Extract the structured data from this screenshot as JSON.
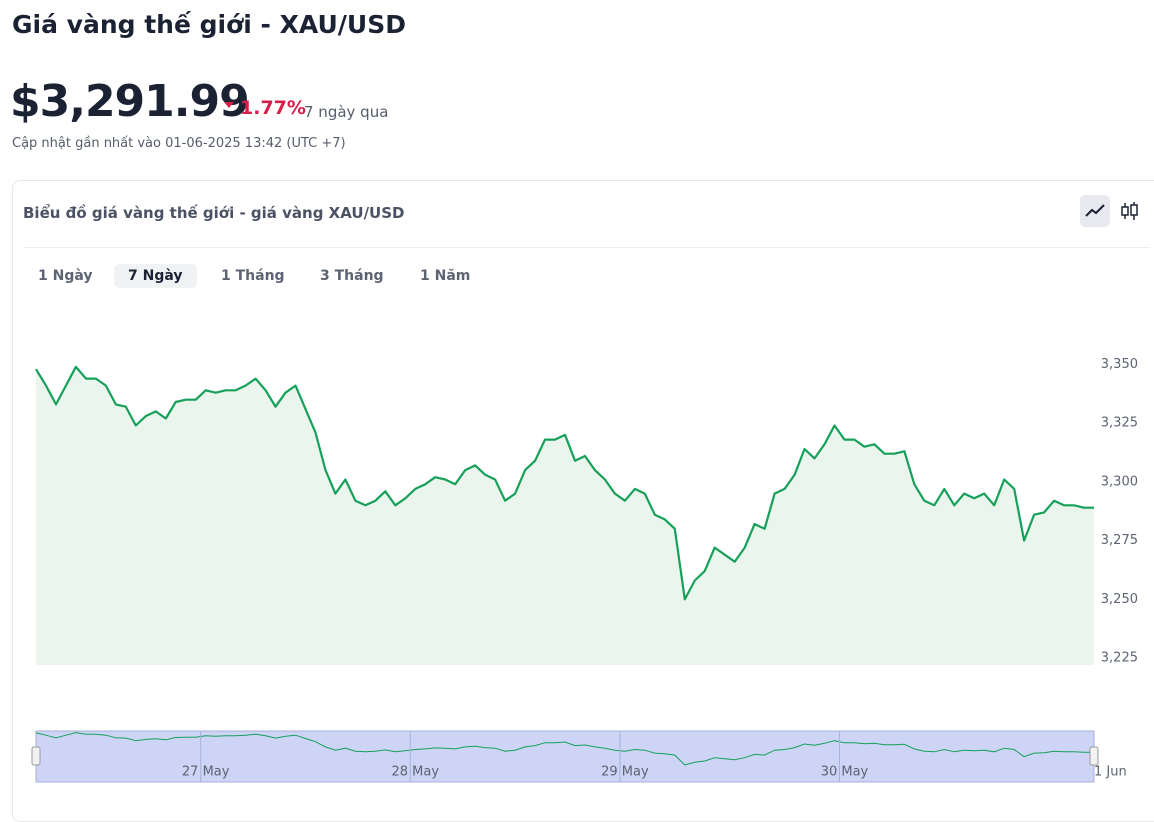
{
  "header": {
    "title": "Giá vàng thế giới - XAU/USD",
    "price": "$3,291.99",
    "change": "1.77%",
    "period": "7 ngày qua",
    "updated": "Cập nhật gần nhất vào 01-06-2025 13:42 (UTC +7)"
  },
  "card": {
    "title": "Biểu đồ giá vàng thế giới - giá vàng XAU/USD",
    "tabs": [
      "1 Ngày",
      "7 Ngày",
      "1 Tháng",
      "3 Tháng",
      "1 Năm"
    ],
    "active_tab": 1
  },
  "chart_data": {
    "type": "area",
    "categories": [
      null,
      null,
      null,
      null,
      null,
      null,
      null,
      null,
      null,
      null,
      null,
      null,
      null,
      null,
      null,
      null,
      null,
      "27 May",
      null,
      null,
      null,
      null,
      null,
      null,
      null,
      null,
      null,
      null,
      null,
      null,
      null,
      null,
      null,
      null,
      null,
      null,
      null,
      null,
      "28 May",
      null,
      null,
      null,
      null,
      null,
      null,
      null,
      null,
      null,
      null,
      null,
      null,
      null,
      null,
      null,
      null,
      null,
      null,
      null,
      null,
      "29 May",
      null,
      null,
      null,
      null,
      null,
      null,
      null,
      null,
      null,
      null,
      null,
      null,
      null,
      null,
      null,
      null,
      null,
      null,
      null,
      null,
      null,
      "30 May",
      null,
      null,
      null,
      null,
      null,
      null,
      null,
      null,
      null,
      null,
      null,
      null,
      null,
      null,
      null,
      null,
      null,
      null,
      null,
      null,
      null,
      null,
      null,
      null,
      "1 Jun"
    ],
    "series": [
      {
        "color": "#16a05a",
        "values": [
          3348,
          3341,
          3333,
          3341,
          3349,
          3344,
          3344,
          3341,
          3333,
          3332,
          3324,
          3328,
          3330,
          3327,
          3334,
          3335,
          3335,
          3339,
          3338,
          3339,
          3339,
          3341,
          3344,
          3339,
          3332,
          3338,
          3341,
          3331,
          3321,
          3305,
          3295,
          3301,
          3292,
          3290,
          3292,
          3296,
          3290,
          3293,
          3297,
          3299,
          3302,
          3301,
          3299,
          3305,
          3307,
          3303,
          3301,
          3292,
          3295,
          3305,
          3309,
          3318,
          3318,
          3320,
          3309,
          3311,
          3305,
          3301,
          3295,
          3292,
          3297,
          3295,
          3286,
          3284,
          3280,
          3250,
          3258,
          3262,
          3272,
          3269,
          3266,
          3272,
          3282,
          3280,
          3295,
          3297,
          3303,
          3314,
          3310,
          3316,
          3324,
          3318,
          3318,
          3315,
          3316,
          3312,
          3312,
          3313,
          3299,
          3292,
          3290,
          3297,
          3290,
          3295,
          3293,
          3295,
          3290,
          3301,
          3297,
          3275,
          3286,
          3287,
          3292,
          3290,
          3290,
          3289,
          3289
        ]
      }
    ],
    "ylim": [
      3222,
      3360
    ],
    "yticks": [
      {
        "value": 3225,
        "label": "3,225"
      },
      {
        "value": 3250,
        "label": "3,250"
      },
      {
        "value": 3275,
        "label": "3,275"
      },
      {
        "value": 3300,
        "label": "3,300"
      },
      {
        "value": 3325,
        "label": "3,325"
      },
      {
        "value": 3350,
        "label": "3,350"
      }
    ]
  }
}
